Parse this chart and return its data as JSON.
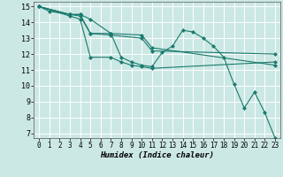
{
  "xlabel": "Humidex (Indice chaleur)",
  "background_color": "#cce8e4",
  "grid_color": "#ffffff",
  "line_color": "#1a7a6e",
  "xlim": [
    -0.5,
    23.5
  ],
  "ylim": [
    6.7,
    15.3
  ],
  "xticks": [
    0,
    1,
    2,
    3,
    4,
    5,
    6,
    7,
    8,
    9,
    10,
    11,
    12,
    13,
    14,
    15,
    16,
    17,
    18,
    19,
    20,
    21,
    22,
    23
  ],
  "yticks": [
    7,
    8,
    9,
    10,
    11,
    12,
    13,
    14,
    15
  ],
  "series": [
    {
      "x": [
        0,
        1,
        3,
        4,
        5,
        7,
        8,
        9,
        10,
        11,
        12,
        13,
        14,
        15,
        16,
        17,
        18,
        19,
        20,
        21,
        22,
        23
      ],
      "y": [
        15,
        14.7,
        14.5,
        14.5,
        14.2,
        13.3,
        11.8,
        11.5,
        11.3,
        11.2,
        12.1,
        12.5,
        13.5,
        13.4,
        13.0,
        12.5,
        11.8,
        10.1,
        8.6,
        9.6,
        8.3,
        6.7
      ]
    },
    {
      "x": [
        0,
        3,
        4,
        5,
        7,
        10,
        11,
        23
      ],
      "y": [
        15,
        14.5,
        14.5,
        13.3,
        13.3,
        13.2,
        12.4,
        11.3
      ]
    },
    {
      "x": [
        0,
        3,
        4,
        5,
        7,
        10,
        11,
        23
      ],
      "y": [
        15,
        14.5,
        14.4,
        13.3,
        13.2,
        13.0,
        12.2,
        12.0
      ]
    },
    {
      "x": [
        0,
        3,
        4,
        5,
        7,
        8,
        9,
        10,
        11,
        23
      ],
      "y": [
        15,
        14.4,
        14.2,
        11.8,
        11.8,
        11.5,
        11.3,
        11.2,
        11.1,
        11.5
      ]
    }
  ]
}
